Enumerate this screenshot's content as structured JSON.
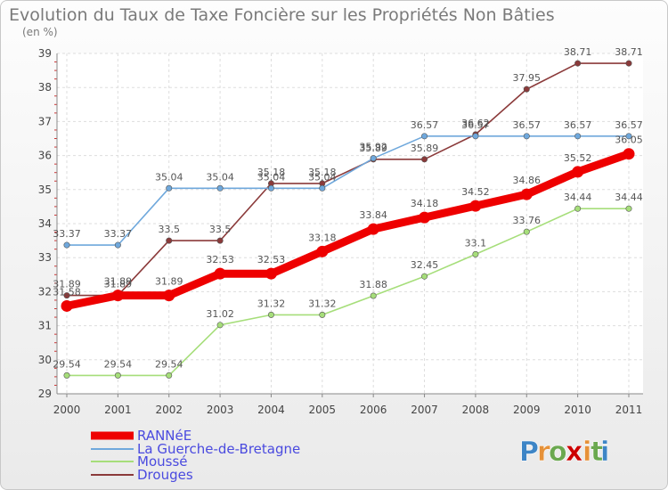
{
  "chart_data": {
    "type": "line",
    "title": "Evolution du Taux de Taxe Foncière sur les Propriétés Non Bâties",
    "subtitle": "(en %)",
    "xlabel": "",
    "ylabel": "",
    "x": [
      "2000",
      "2001",
      "2002",
      "2003",
      "2004",
      "2005",
      "2006",
      "2007",
      "2008",
      "2009",
      "2010",
      "2011"
    ],
    "y_ticks": [
      "29",
      "30",
      "31",
      "32",
      "33",
      "34",
      "35",
      "36",
      "37",
      "38",
      "39"
    ],
    "ylim": [
      29,
      39
    ],
    "grid": true,
    "legend": "bottom-left",
    "series": [
      {
        "name": "RANNéE",
        "color": "#ee0000",
        "values": [
          31.58,
          31.89,
          31.89,
          32.53,
          32.53,
          33.18,
          33.84,
          34.18,
          34.52,
          34.86,
          35.52,
          36.05
        ],
        "labels": [
          "31.58",
          "31.89",
          "31.89",
          "32.53",
          "32.53",
          "33.18",
          "33.84",
          "34.18",
          "34.52",
          "34.86",
          "35.52",
          "36.05"
        ]
      },
      {
        "name": "La Guerche-de-Bretagne",
        "color": "#6fa8dc",
        "values": [
          33.37,
          33.37,
          35.04,
          35.04,
          35.04,
          35.04,
          35.92,
          36.57,
          36.57,
          36.57,
          36.57,
          36.57
        ],
        "labels": [
          "33.37",
          "33.37",
          "35.04",
          "35.04",
          "35.04",
          "35.04",
          "35.92",
          "36.57",
          "36.57",
          "36.57",
          "36.57",
          "36.57"
        ]
      },
      {
        "name": "Moussé",
        "color": "#a6de7a",
        "values": [
          29.54,
          29.54,
          29.54,
          31.02,
          31.32,
          31.32,
          31.88,
          32.45,
          33.1,
          33.76,
          34.44,
          34.44
        ],
        "labels": [
          "29.54",
          "29.54",
          "29.54",
          "31.02",
          "31.32",
          "31.32",
          "31.88",
          "32.45",
          "33.1",
          "33.76",
          "34.44",
          "34.44"
        ]
      },
      {
        "name": "Drouges",
        "color": "#8b3a3a",
        "values": [
          31.89,
          31.89,
          33.5,
          33.5,
          35.18,
          35.18,
          35.89,
          35.89,
          36.62,
          37.95,
          38.71,
          38.71
        ],
        "labels": [
          "31.89",
          "31.89",
          "33.5",
          "33.5",
          "35.18",
          "35.18",
          "35.89",
          "35.89",
          "36.62",
          "37.95",
          "38.71",
          "38.71"
        ]
      }
    ]
  },
  "logo": {
    "letters": [
      "P",
      "r",
      "o",
      "x",
      "i",
      "t",
      "i"
    ],
    "colors": [
      "#3d85c6",
      "#e69138",
      "#6aa84f",
      "#cc0000",
      "#e69138",
      "#6aa84f",
      "#3d85c6"
    ]
  }
}
